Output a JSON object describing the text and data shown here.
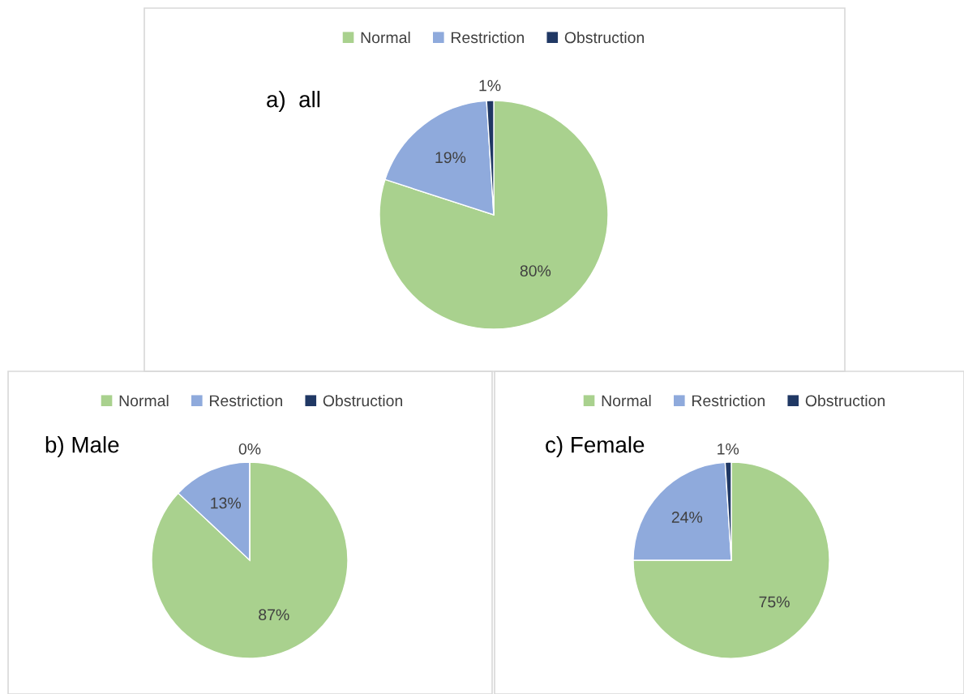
{
  "chart_data": [
    {
      "type": "pie",
      "title": "a)  all",
      "categories": [
        "Normal",
        "Restriction",
        "Obstruction"
      ],
      "values": [
        80,
        19,
        1
      ],
      "colors": [
        "#a9d18e",
        "#8faadc",
        "#203864"
      ],
      "value_labels": [
        "80%",
        "19%",
        "1%"
      ],
      "legend": "top"
    },
    {
      "type": "pie",
      "title": "b) Male",
      "categories": [
        "Normal",
        "Restriction",
        "Obstruction"
      ],
      "values": [
        87,
        13,
        0
      ],
      "colors": [
        "#a9d18e",
        "#8faadc",
        "#203864"
      ],
      "value_labels": [
        "87%",
        "13%",
        "0%"
      ],
      "legend": "top"
    },
    {
      "type": "pie",
      "title": "c) Female",
      "categories": [
        "Normal",
        "Restriction",
        "Obstruction"
      ],
      "values": [
        75,
        24,
        1
      ],
      "colors": [
        "#a9d18e",
        "#8faadc",
        "#203864"
      ],
      "value_labels": [
        "75%",
        "24%",
        "1%"
      ],
      "legend": "top"
    }
  ]
}
